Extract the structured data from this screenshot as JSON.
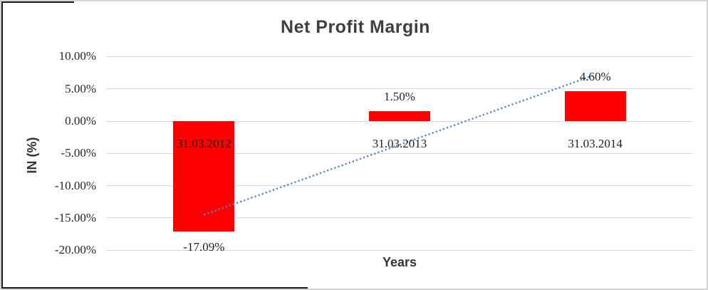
{
  "chart_data": {
    "type": "bar",
    "title": "Net Profit Margin",
    "xlabel": "Years",
    "ylabel": "IN (%)",
    "categories": [
      "31.03.2012",
      "31.03.2013",
      "31.03.2014"
    ],
    "values": [
      -17.09,
      1.5,
      4.6
    ],
    "data_labels": [
      "-17.09%",
      "1.50%",
      "4.60%"
    ],
    "ylim": [
      -20,
      10
    ],
    "yticks": [
      {
        "value": 10,
        "label": "10.00%"
      },
      {
        "value": 5,
        "label": "5.00%"
      },
      {
        "value": 0,
        "label": "0.00%"
      },
      {
        "value": -5,
        "label": "-5.00%"
      },
      {
        "value": -10,
        "label": "-10.00%"
      },
      {
        "value": -15,
        "label": "-15.00%"
      },
      {
        "value": -20,
        "label": "-20.00%"
      }
    ],
    "grid": true,
    "legend": "none",
    "bar_color": "#ff0000",
    "trendline": {
      "type": "linear",
      "style": "dotted",
      "color": "#4e86c8"
    }
  }
}
